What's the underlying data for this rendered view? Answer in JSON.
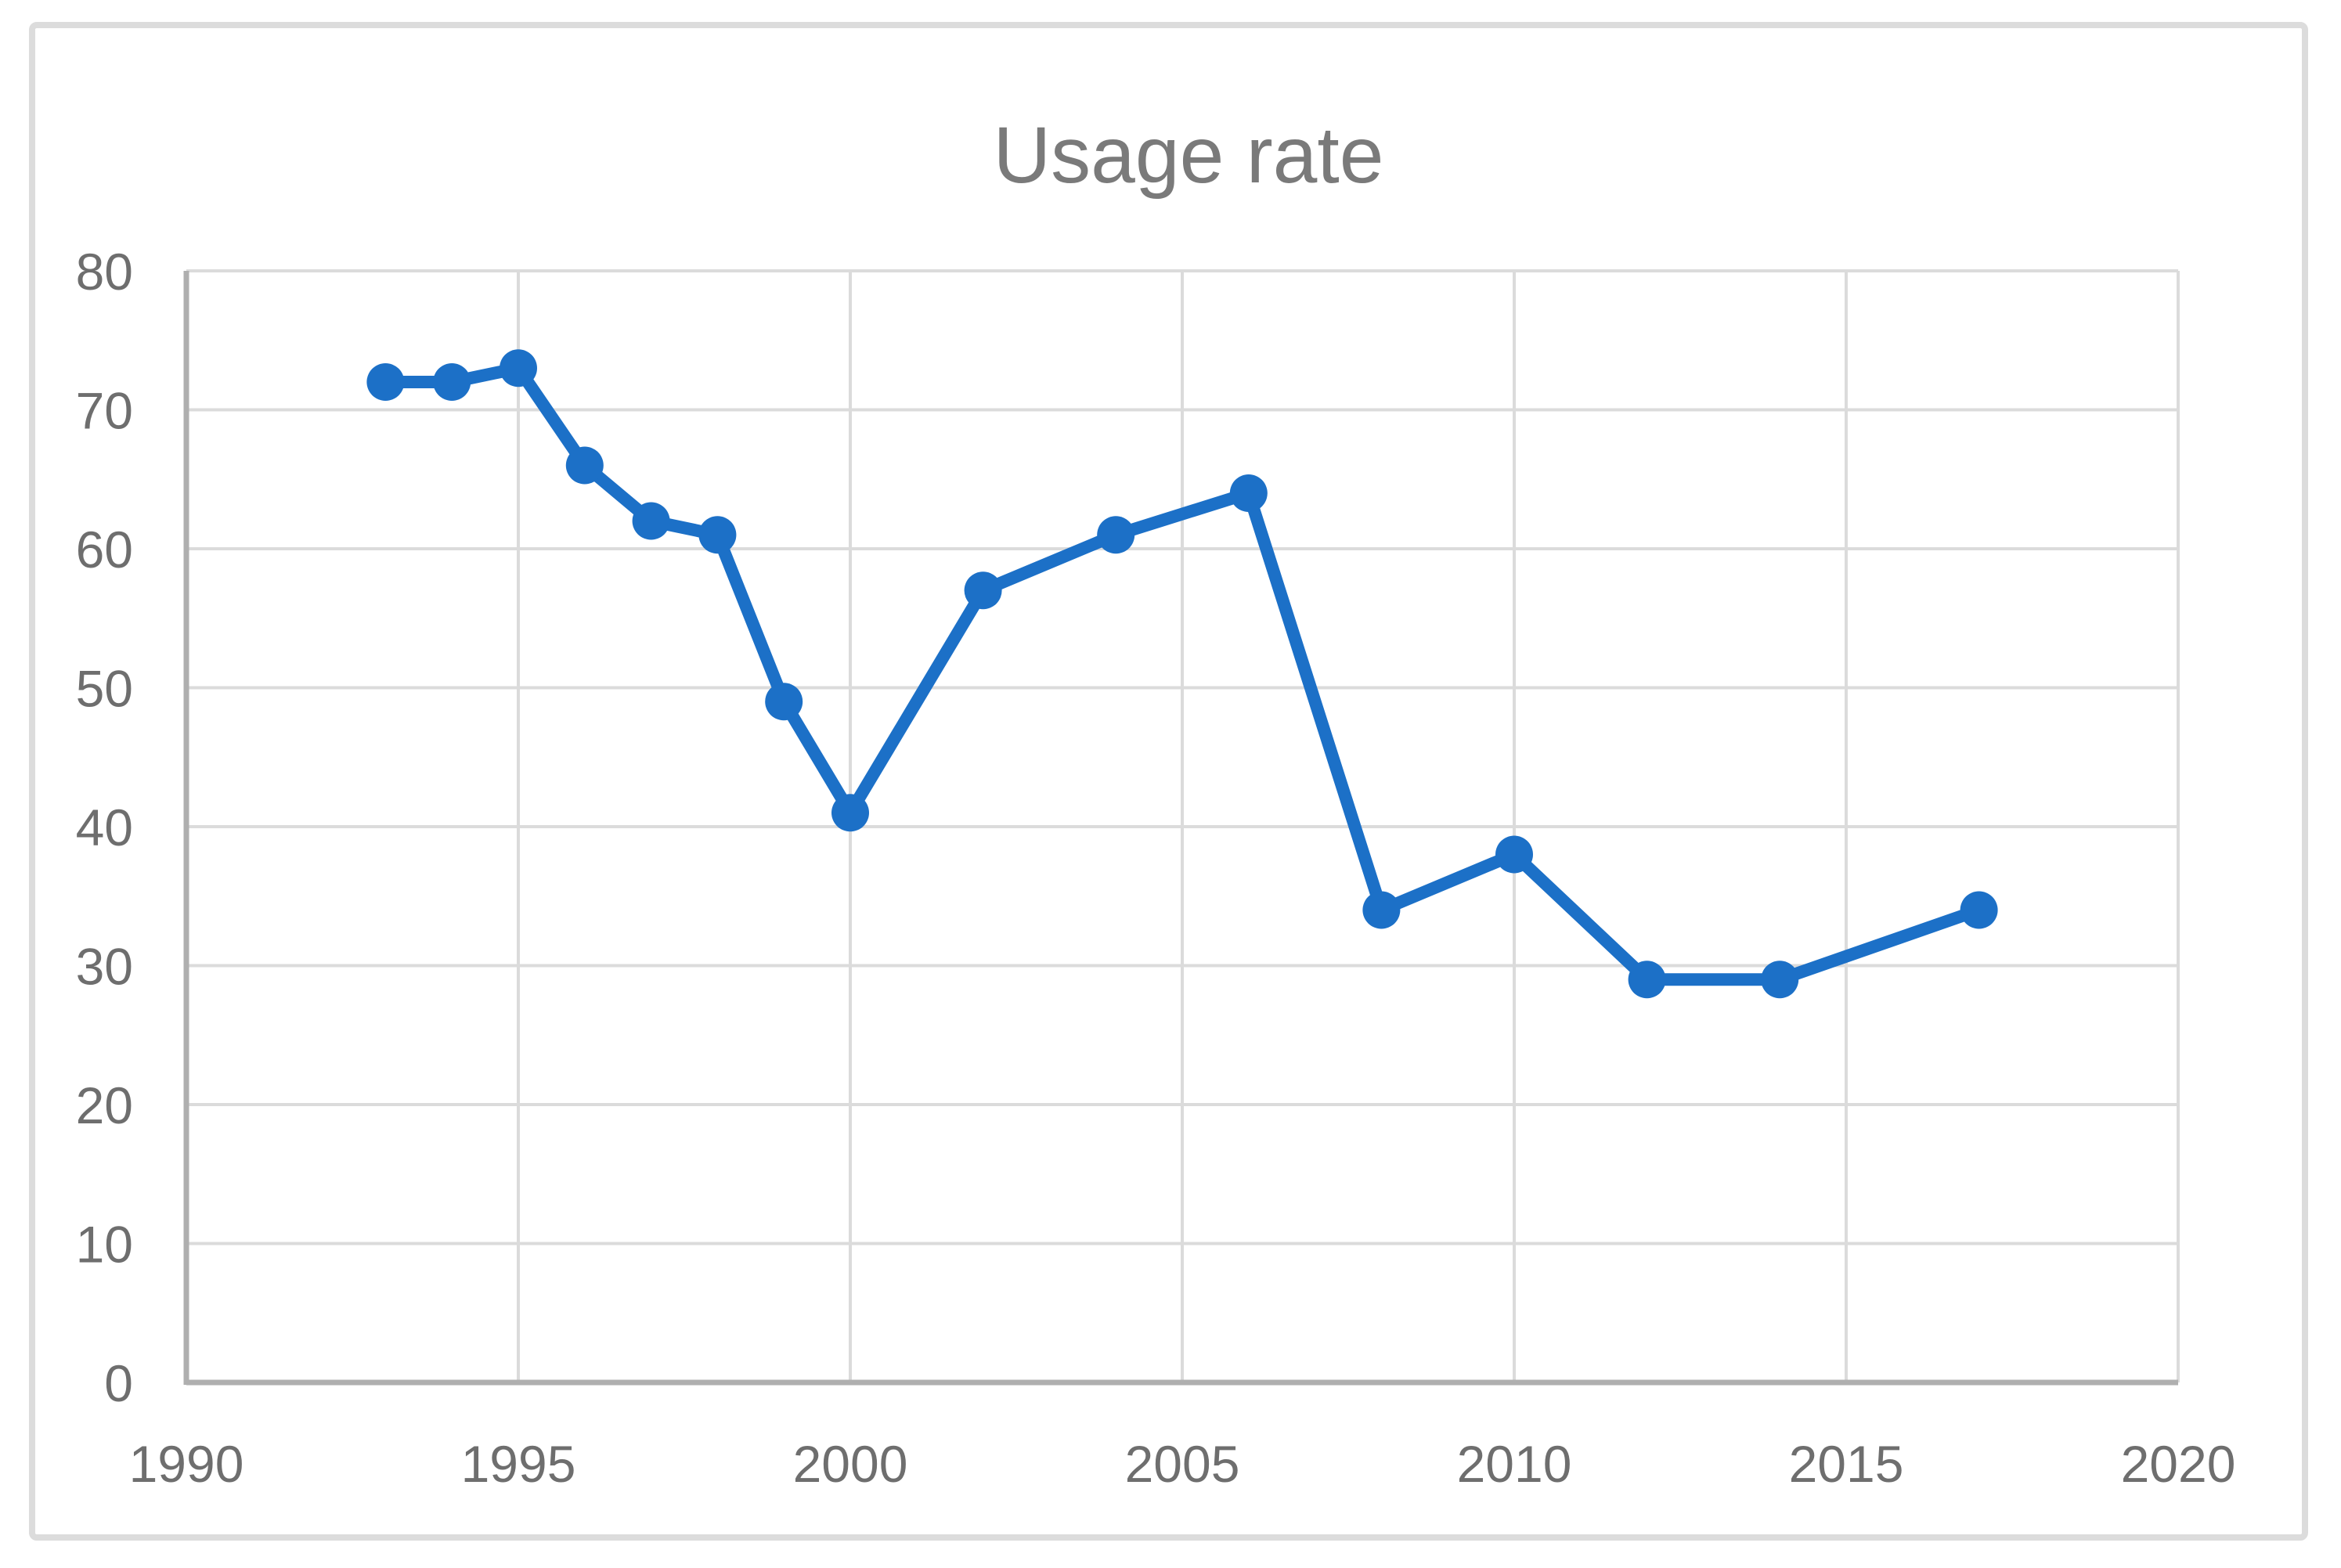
{
  "page": {
    "background": "#ffffff"
  },
  "chart_data": {
    "type": "line",
    "title": "Usage rate",
    "x": [
      1993,
      1994,
      1995,
      1996,
      1997,
      1998,
      1999,
      2000,
      2002,
      2004,
      2006,
      2008,
      2010,
      2012,
      2014,
      2017
    ],
    "series": [
      {
        "name": "Usage rate",
        "values": [
          72,
          72,
          73,
          66,
          62,
          61,
          49,
          41,
          57,
          61,
          64,
          34,
          38,
          29,
          29,
          34
        ]
      }
    ],
    "xlabel": "",
    "ylabel": "",
    "x_range": [
      1990,
      2020
    ],
    "y_range": [
      0,
      80
    ],
    "x_ticks": [
      1990,
      1995,
      2000,
      2005,
      2010,
      2015,
      2020
    ],
    "y_ticks": [
      0,
      10,
      20,
      30,
      40,
      50,
      60,
      70,
      80
    ],
    "grid": true,
    "legend": "none",
    "marker": "circle"
  },
  "colors": {
    "series_line": "#1C70C7",
    "gridline": "#DBDBDB",
    "axis_line": "#AFAFAF",
    "frame_border": "#DCDCDC",
    "tick_label": "#6E6E6E",
    "title": "#7A7A7A"
  }
}
